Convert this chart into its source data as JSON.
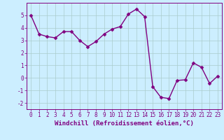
{
  "x": [
    0,
    1,
    2,
    3,
    4,
    5,
    6,
    7,
    8,
    9,
    10,
    11,
    12,
    13,
    14,
    15,
    16,
    17,
    18,
    19,
    20,
    21,
    22,
    23
  ],
  "y": [
    5.0,
    3.5,
    3.3,
    3.2,
    3.7,
    3.7,
    3.0,
    2.5,
    2.9,
    3.5,
    3.9,
    4.1,
    5.1,
    5.5,
    4.9,
    -0.7,
    -1.55,
    -1.65,
    -0.2,
    -0.15,
    1.2,
    0.85,
    -0.45,
    0.15
  ],
  "line_color": "#800080",
  "marker": "D",
  "marker_size": 2.5,
  "linewidth": 1.0,
  "xlabel": "Windchill (Refroidissement éolien,°C)",
  "xlim": [
    -0.5,
    23.5
  ],
  "ylim": [
    -2.5,
    6.0
  ],
  "yticks": [
    -2,
    -1,
    0,
    1,
    2,
    3,
    4,
    5
  ],
  "xticks": [
    0,
    1,
    2,
    3,
    4,
    5,
    6,
    7,
    8,
    9,
    10,
    11,
    12,
    13,
    14,
    15,
    16,
    17,
    18,
    19,
    20,
    21,
    22,
    23
  ],
  "background_color": "#cceeff",
  "grid_color": "#aacccc",
  "tick_color": "#800080",
  "label_color": "#800080",
  "xlabel_fontsize": 6.5,
  "tick_fontsize": 5.5
}
